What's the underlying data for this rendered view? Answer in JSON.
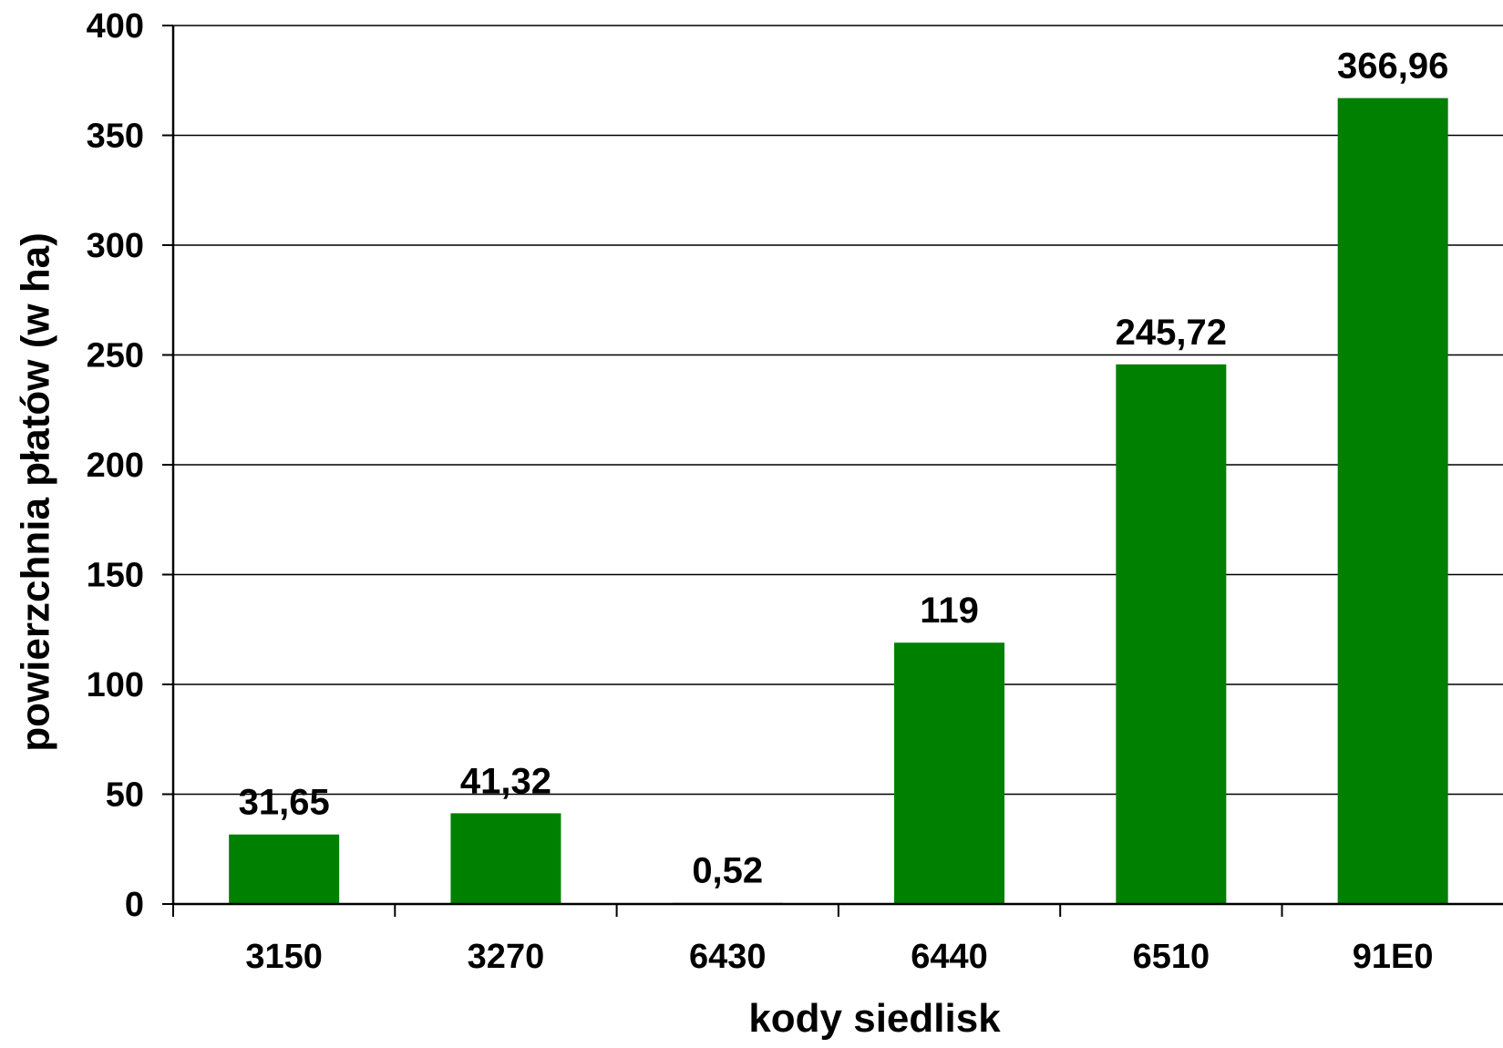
{
  "chart_data": {
    "type": "bar",
    "categories": [
      "3150",
      "3270",
      "6430",
      "6440",
      "6510",
      "91E0"
    ],
    "values": [
      31.65,
      41.32,
      0.52,
      119,
      245.72,
      366.96
    ],
    "data_labels": [
      "31,65",
      "41,32",
      "0,52",
      "119",
      "245,72",
      "366,96"
    ],
    "title": "",
    "xlabel": "kody siedlisk",
    "ylabel": "powierzchnia płatów (w ha)",
    "ylim": [
      0,
      400
    ],
    "yticks": [
      0,
      50,
      100,
      150,
      200,
      250,
      300,
      350,
      400
    ],
    "ytick_labels": [
      "0",
      "50",
      "100",
      "150",
      "200",
      "250",
      "300",
      "350",
      "400"
    ],
    "grid": true,
    "legend": "none",
    "bar_color": "#008000"
  }
}
